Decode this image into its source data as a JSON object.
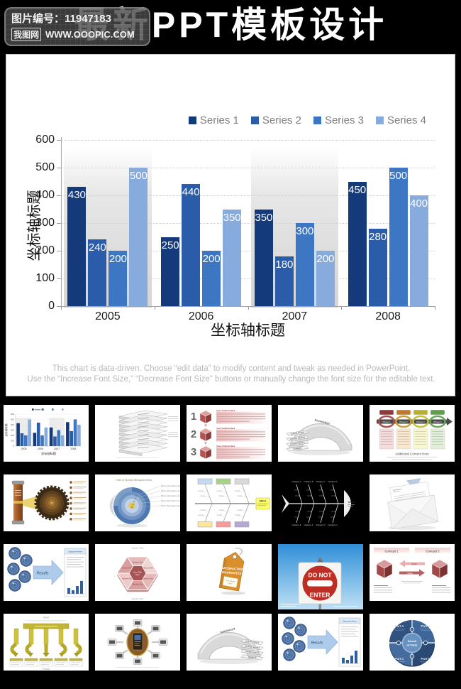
{
  "header": {
    "title": "最新PPT模板设计"
  },
  "watermark": {
    "line1": "图片编号：11947183",
    "logo": "我图网",
    "url": "WWW.OOOPIC.COM"
  },
  "slide": {
    "footer_line1": "This chart is data-driven. Choose “edit data” to modify content and tweak as needed in PowerPoint.",
    "footer_line2": "Use the “Increase Font Size,” “Decrease Font Size” buttons or manually change the font size for the editable text."
  },
  "chart_data": {
    "type": "bar",
    "title": "",
    "categories": [
      "2005",
      "2006",
      "2007",
      "2008"
    ],
    "series": [
      {
        "name": "Series 1",
        "color": "#153a7c",
        "values": [
          430,
          250,
          350,
          450
        ]
      },
      {
        "name": "Series 2",
        "color": "#2b5ca9",
        "values": [
          240,
          440,
          180,
          280
        ]
      },
      {
        "name": "Series 3",
        "color": "#3d77c4",
        "values": [
          200,
          200,
          300,
          500
        ]
      },
      {
        "name": "Series 4",
        "color": "#86abdc",
        "values": [
          500,
          350,
          200,
          400
        ]
      }
    ],
    "xlabel": "坐标轴标题",
    "ylabel": "坐标轴标题",
    "ylim": [
      0,
      600
    ],
    "ytick_step": 100,
    "grid": true,
    "legend_position": "top-right",
    "data_labels": true,
    "band_groups": [
      0,
      2
    ]
  },
  "thumbnails": [
    {
      "kind": "mini-bar-chart",
      "label": "data-driven bar chart slide"
    },
    {
      "kind": "stacked-levels",
      "label": "3D stacked level plates"
    },
    {
      "kind": "numbered-cubes",
      "numbers": [
        "1",
        "2",
        "3"
      ],
      "heading": "Your Content Here"
    },
    {
      "kind": "bridge-steps",
      "steps": [
        "Submit Report",
        "Choose Options",
        "Screen Options",
        "Evaluate"
      ],
      "top_label": "Foundation"
    },
    {
      "kind": "phase-chain",
      "phases": [
        "Phase 1",
        "Phase 2",
        "Phase 3",
        "Phase 4"
      ],
      "footer": "Additional Content Here"
    },
    {
      "kind": "cylinder-gear",
      "label": "cylinder projecting onto gear wheel"
    },
    {
      "kind": "sphere-layers",
      "title": "Title of Sphere Metaphor Here",
      "item": "Place Description Here"
    },
    {
      "kind": "fishbone-light",
      "effect": "Effect",
      "cause": "Cause"
    },
    {
      "kind": "fishbone-dark",
      "effect": "Effect",
      "categories": [
        "Category A",
        "Category B",
        "Category C",
        "Category D",
        "Category E",
        "Category F",
        "Category G",
        "Category H"
      ]
    },
    {
      "kind": "envelope",
      "label": "envelope with letter"
    },
    {
      "kind": "spheres-results",
      "arrow": "Results",
      "outcome": "Outcome Here"
    },
    {
      "kind": "hexagon-segments",
      "core_line1": "Core Title",
      "core_line2": "Here",
      "segment": "Element Title",
      "section": "Section Title"
    },
    {
      "kind": "guarantee-tag",
      "line1": "SATISFACTION",
      "line2": "GUARANTEE",
      "label_line1": "Your Words",
      "label_line2": "Here"
    },
    {
      "kind": "do-not-enter",
      "line1": "DO NOT",
      "line2": "ENTER"
    },
    {
      "kind": "concept-swap",
      "concept1": "Concept 1",
      "concept2": "Concept 2",
      "swap": "Swap"
    },
    {
      "kind": "ribbon-flow",
      "start": "Start",
      "finish": "Finish"
    },
    {
      "kind": "hub-spokes",
      "label": "central hub with connected devices"
    },
    {
      "kind": "bridge-steps-mirrored",
      "steps": [
        "Submit Report",
        "Choose Options",
        "Screen Options",
        "Evaluate"
      ],
      "top_label": "Foundation"
    },
    {
      "kind": "spheres-results",
      "arrow": "Results",
      "outcome": "Outcome Here"
    },
    {
      "kind": "parts-circle",
      "center_line1": "Result",
      "center_line2": "of Parts",
      "parts": [
        "Part A",
        "Part B",
        "Part C",
        "Part D"
      ]
    }
  ]
}
